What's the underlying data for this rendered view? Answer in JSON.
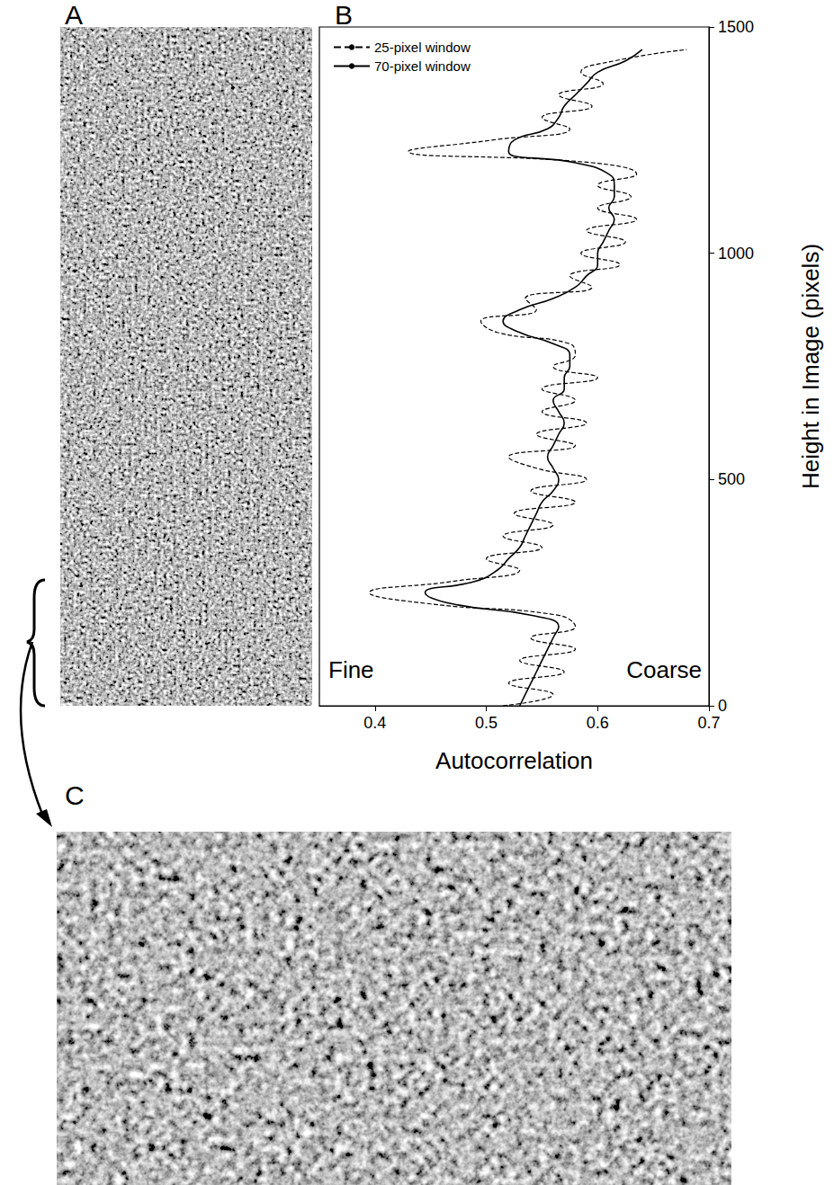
{
  "panel_labels": [
    "A",
    "B",
    "C"
  ],
  "chart_data": {
    "type": "line",
    "xlabel": "Autocorrelation",
    "ylabel": "Height in Image (pixels)",
    "annotations": [
      "Fine",
      "Coarse"
    ],
    "xlim": [
      0.35,
      0.7
    ],
    "xticks": [
      0.4,
      0.5,
      0.6,
      0.7
    ],
    "ylim": [
      0,
      1500
    ],
    "yticks": [
      0,
      500,
      1000,
      1500
    ],
    "grid": false,
    "legend": "upper left",
    "y": [
      0,
      25,
      50,
      75,
      100,
      125,
      150,
      175,
      200,
      225,
      250,
      275,
      300,
      325,
      350,
      375,
      400,
      425,
      450,
      475,
      500,
      525,
      550,
      575,
      600,
      625,
      650,
      675,
      700,
      725,
      750,
      775,
      800,
      825,
      850,
      875,
      900,
      925,
      950,
      975,
      1000,
      1025,
      1050,
      1075,
      1100,
      1125,
      1150,
      1175,
      1200,
      1225,
      1250,
      1275,
      1300,
      1325,
      1350,
      1375,
      1400,
      1425,
      1450
    ],
    "series": [
      {
        "name": "25-pixel window",
        "color": "#000000",
        "line_style": "dashed",
        "values": [
          0.515,
          0.56,
          0.52,
          0.57,
          0.53,
          0.58,
          0.54,
          0.58,
          0.565,
          0.45,
          0.395,
          0.47,
          0.53,
          0.5,
          0.55,
          0.515,
          0.56,
          0.525,
          0.58,
          0.54,
          0.59,
          0.545,
          0.52,
          0.58,
          0.545,
          0.59,
          0.55,
          0.58,
          0.55,
          0.6,
          0.56,
          0.58,
          0.575,
          0.51,
          0.495,
          0.545,
          0.535,
          0.595,
          0.575,
          0.62,
          0.585,
          0.625,
          0.59,
          0.635,
          0.6,
          0.63,
          0.6,
          0.635,
          0.595,
          0.43,
          0.505,
          0.575,
          0.55,
          0.595,
          0.565,
          0.605,
          0.585,
          0.615,
          0.68
        ]
      },
      {
        "name": "70-pixel window",
        "color": "#000000",
        "line_style": "solid",
        "values": [
          0.53,
          0.535,
          0.54,
          0.545,
          0.55,
          0.555,
          0.56,
          0.565,
          0.54,
          0.47,
          0.445,
          0.49,
          0.51,
          0.52,
          0.53,
          0.535,
          0.54,
          0.545,
          0.55,
          0.56,
          0.565,
          0.56,
          0.555,
          0.56,
          0.565,
          0.57,
          0.565,
          0.56,
          0.57,
          0.57,
          0.575,
          0.575,
          0.56,
          0.53,
          0.515,
          0.53,
          0.56,
          0.58,
          0.59,
          0.6,
          0.6,
          0.605,
          0.61,
          0.615,
          0.61,
          0.615,
          0.615,
          0.61,
          0.58,
          0.52,
          0.525,
          0.555,
          0.565,
          0.57,
          0.58,
          0.59,
          0.6,
          0.625,
          0.64
        ]
      }
    ]
  }
}
